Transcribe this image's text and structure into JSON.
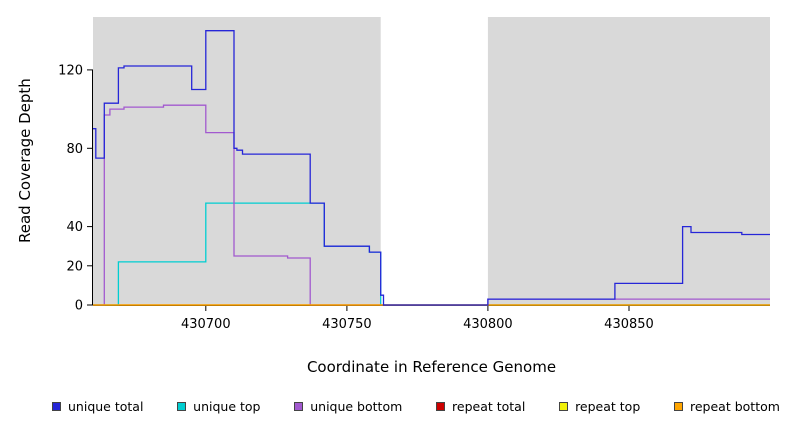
{
  "chart_data": {
    "type": "line",
    "subtype": "step-coverage-plot",
    "title": "",
    "xlabel": "Coordinate in Reference Genome",
    "ylabel": "Read Coverage Depth",
    "xlim": [
      430660,
      430900
    ],
    "ylim": [
      0,
      147
    ],
    "x_ticks": [
      430700,
      430750,
      430800,
      430850
    ],
    "y_ticks": [
      0,
      20,
      40,
      80,
      120
    ],
    "grid": false,
    "plot_bg": "#d9d9d9",
    "page_bg": "#ffffff",
    "highlight_band": {
      "x_start": 430762,
      "x_end": 430800,
      "color": "#ffffff"
    },
    "legend_position": "bottom",
    "draw_order": [
      "unique top",
      "unique bottom",
      "repeat total",
      "repeat top",
      "repeat bottom",
      "unique total"
    ],
    "series": [
      {
        "name": "unique total",
        "color": "#2626D8",
        "points": [
          [
            430660,
            90
          ],
          [
            430661,
            75
          ],
          [
            430663,
            75
          ],
          [
            430664,
            103
          ],
          [
            430669,
            121
          ],
          [
            430671,
            122
          ],
          [
            430694,
            122
          ],
          [
            430695,
            110
          ],
          [
            430699,
            110
          ],
          [
            430700,
            140
          ],
          [
            430709,
            140
          ],
          [
            430710,
            80
          ],
          [
            430711,
            79
          ],
          [
            430713,
            77
          ],
          [
            430736,
            77
          ],
          [
            430737,
            52
          ],
          [
            430741,
            52
          ],
          [
            430742,
            30
          ],
          [
            430757,
            30
          ],
          [
            430758,
            27
          ],
          [
            430761,
            27
          ],
          [
            430762,
            5
          ],
          [
            430763,
            0
          ],
          [
            430799,
            0
          ],
          [
            430800,
            3
          ],
          [
            430844,
            3
          ],
          [
            430845,
            11
          ],
          [
            430868,
            11
          ],
          [
            430869,
            40
          ],
          [
            430871,
            40
          ],
          [
            430872,
            37
          ],
          [
            430889,
            37
          ],
          [
            430890,
            36
          ],
          [
            430900,
            36
          ]
        ]
      },
      {
        "name": "unique top",
        "color": "#00CED1",
        "points": [
          [
            430660,
            0
          ],
          [
            430668,
            0
          ],
          [
            430669,
            22
          ],
          [
            430699,
            22
          ],
          [
            430700,
            52
          ],
          [
            430741,
            52
          ],
          [
            430742,
            30
          ],
          [
            430757,
            30
          ],
          [
            430758,
            27
          ],
          [
            430761,
            27
          ],
          [
            430762,
            0
          ],
          [
            430900,
            0
          ]
        ]
      },
      {
        "name": "unique bottom",
        "color": "#A259CF",
        "points": [
          [
            430660,
            0
          ],
          [
            430663,
            0
          ],
          [
            430664,
            97
          ],
          [
            430666,
            100
          ],
          [
            430671,
            101
          ],
          [
            430685,
            102
          ],
          [
            430699,
            102
          ],
          [
            430700,
            88
          ],
          [
            430709,
            88
          ],
          [
            430710,
            25
          ],
          [
            430728,
            25
          ],
          [
            430729,
            24
          ],
          [
            430736,
            24
          ],
          [
            430737,
            0
          ],
          [
            430799,
            0
          ],
          [
            430800,
            3
          ],
          [
            430900,
            3
          ]
        ]
      },
      {
        "name": "repeat total",
        "color": "#CC0000",
        "points": [
          [
            430660,
            0
          ],
          [
            430900,
            0
          ]
        ]
      },
      {
        "name": "repeat top",
        "color": "#F2F20A",
        "points": [
          [
            430660,
            0
          ],
          [
            430900,
            0
          ]
        ]
      },
      {
        "name": "repeat bottom",
        "color": "#FFA500",
        "points": [
          [
            430660,
            0
          ],
          [
            430900,
            0
          ]
        ]
      }
    ],
    "legend": {
      "items": [
        {
          "label": "unique total",
          "color": "#2626D8"
        },
        {
          "label": "unique top",
          "color": "#00CED1"
        },
        {
          "label": "unique bottom",
          "color": "#A259CF"
        },
        {
          "label": "repeat total",
          "color": "#CC0000"
        },
        {
          "label": "repeat top",
          "color": "#F2F20A"
        },
        {
          "label": "repeat bottom",
          "color": "#FFA500"
        }
      ]
    }
  }
}
